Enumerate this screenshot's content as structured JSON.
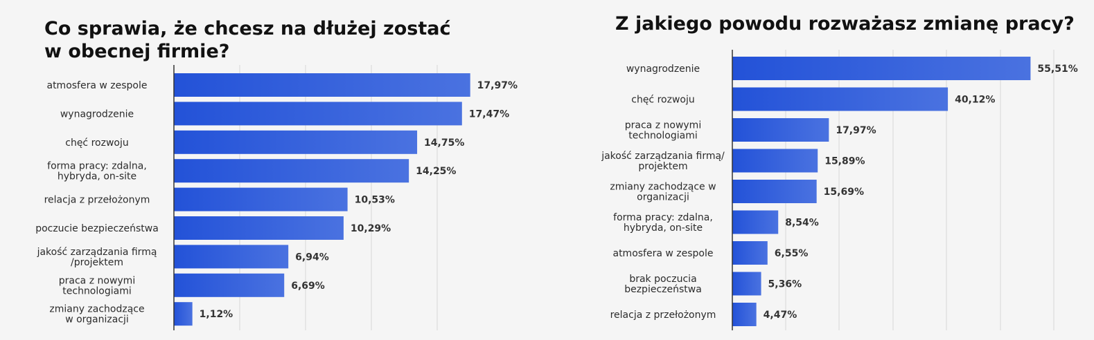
{
  "chart_data": [
    {
      "type": "bar",
      "orientation": "horizontal",
      "title": "Co sprawia, że chcesz na dłużej zostać w obecnej firmie?",
      "title_lines": [
        "Co sprawia, że chcesz na dłużej zostać",
        "w obecnej firmie?"
      ],
      "categories": [
        [
          "atmosfera w zespole"
        ],
        [
          "wynagrodzenie"
        ],
        [
          "chęć rozwoju"
        ],
        [
          "forma pracy: zdalna,",
          "hybryda, on-site"
        ],
        [
          "relacja z przełożonym"
        ],
        [
          "poczucie bezpieczeństwa"
        ],
        [
          "jakość zarządzania firmą",
          "/projektem"
        ],
        [
          "praca z nowymi",
          "technologiami"
        ],
        [
          "zmiany zachodzące",
          "w organizacji"
        ]
      ],
      "values": [
        17.97,
        17.47,
        14.75,
        14.25,
        10.53,
        10.29,
        6.94,
        6.69,
        1.12
      ],
      "value_labels": [
        "17,97%",
        "17,47%",
        "14,75%",
        "14,25%",
        "10,53%",
        "10,29%",
        "6,94%",
        "6,69%",
        "1,12%"
      ],
      "xlim": [
        0,
        20
      ],
      "grid": true,
      "bar_color_start": "#2352d8",
      "bar_color_end": "#4a72e0"
    },
    {
      "type": "bar",
      "orientation": "horizontal",
      "title": "Z jakiego powodu rozważasz zmianę pracy?",
      "title_lines": [
        "Z jakiego powodu rozważasz zmianę pracy?"
      ],
      "categories": [
        [
          "wynagrodzenie"
        ],
        [
          "chęć rozwoju"
        ],
        [
          "praca z nowymi",
          "technologiami"
        ],
        [
          "jakość zarządzania firmą/",
          "projektem"
        ],
        [
          "zmiany zachodzące w",
          "organizacji"
        ],
        [
          "forma pracy: zdalna,",
          "hybryda, on-site"
        ],
        [
          "atmosfera w zespole"
        ],
        [
          "brak poczucia",
          "bezpieczeństwa"
        ],
        [
          "relacja z przełożonym"
        ]
      ],
      "values": [
        55.51,
        40.12,
        17.97,
        15.89,
        15.69,
        8.54,
        6.55,
        5.36,
        4.47
      ],
      "value_labels": [
        "55,51%",
        "40,12%",
        "17,97%",
        "15,89%",
        "15,69%",
        "8,54%",
        "6,55%",
        "5,36%",
        "4,47%"
      ],
      "xlim": [
        0,
        65
      ],
      "grid": true,
      "bar_color_start": "#2352d8",
      "bar_color_end": "#4a72e0"
    }
  ]
}
